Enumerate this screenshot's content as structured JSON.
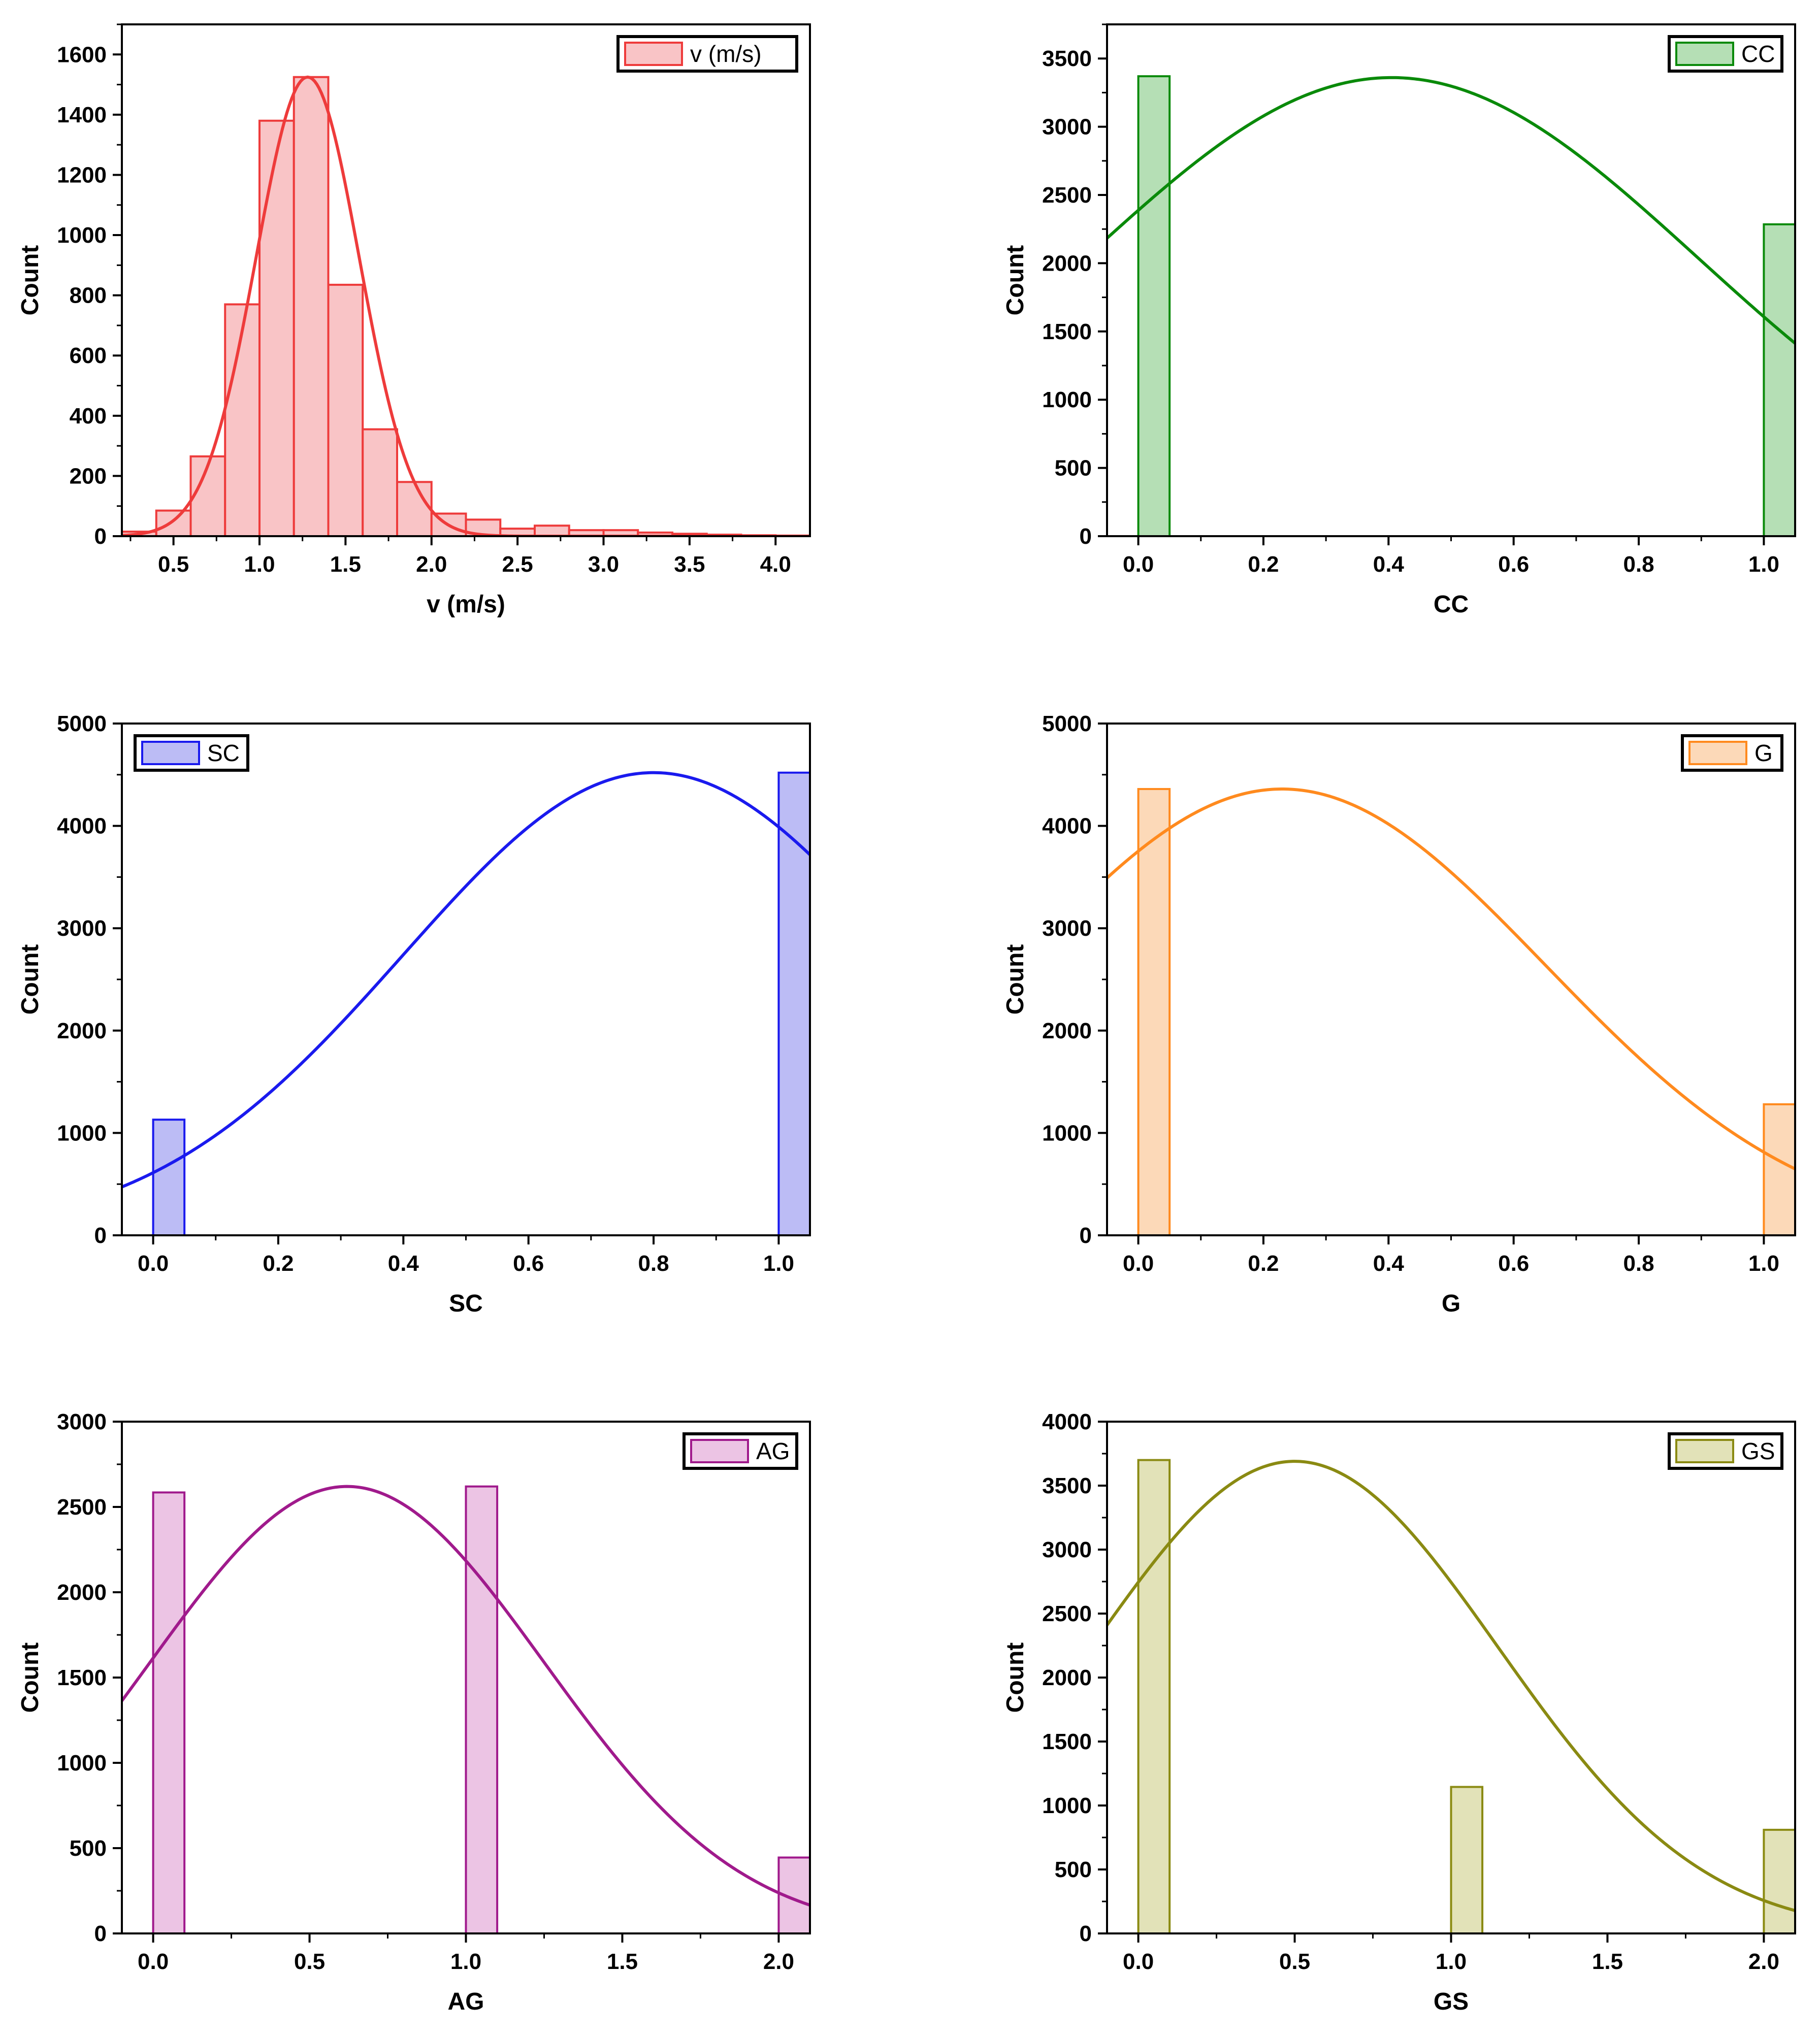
{
  "chart_data": [
    {
      "type": "histogram",
      "xlabel": "v (m/s)",
      "ylabel": "Count",
      "xlim": [
        0.2,
        4.2
      ],
      "ylim": [
        0,
        1700
      ],
      "xticks": [
        0.5,
        1.0,
        1.5,
        2.0,
        2.5,
        3.0,
        3.5,
        4.0
      ],
      "xtick_labels": [
        "0.5",
        "1.0",
        "1.5",
        "2.0",
        "2.5",
        "3.0",
        "3.5",
        "4.0"
      ],
      "yticks": [
        0,
        200,
        400,
        600,
        800,
        1000,
        1200,
        1400,
        1600
      ],
      "ytick_labels": [
        "0",
        "200",
        "400",
        "600",
        "800",
        "1000",
        "1200",
        "1400",
        "1600"
      ],
      "bar_width": 0.2,
      "bars": [
        {
          "x": 0.2,
          "count": 15
        },
        {
          "x": 0.4,
          "count": 85
        },
        {
          "x": 0.6,
          "count": 265
        },
        {
          "x": 0.8,
          "count": 770
        },
        {
          "x": 1.0,
          "count": 1380
        },
        {
          "x": 1.2,
          "count": 1525
        },
        {
          "x": 1.4,
          "count": 835
        },
        {
          "x": 1.6,
          "count": 355
        },
        {
          "x": 1.8,
          "count": 180
        },
        {
          "x": 2.0,
          "count": 75
        },
        {
          "x": 2.2,
          "count": 55
        },
        {
          "x": 2.4,
          "count": 25
        },
        {
          "x": 2.6,
          "count": 35
        },
        {
          "x": 2.8,
          "count": 20
        },
        {
          "x": 3.0,
          "count": 20
        },
        {
          "x": 3.2,
          "count": 12
        },
        {
          "x": 3.4,
          "count": 8
        },
        {
          "x": 3.6,
          "count": 5
        },
        {
          "x": 3.8,
          "count": 3
        },
        {
          "x": 4.0,
          "count": 2
        }
      ],
      "fit": {
        "curve": "normal",
        "peak": 1525,
        "mean": 1.28,
        "sd": 0.3
      },
      "color": "#ee3b3b",
      "fill": "#f9c4c6",
      "legend": {
        "label": "v (m/s)",
        "position": "top-right"
      }
    },
    {
      "type": "histogram",
      "xlabel": "CC",
      "ylabel": "Count",
      "xlim": [
        -0.05,
        1.05
      ],
      "ylim": [
        0,
        3750
      ],
      "xticks": [
        0.0,
        0.2,
        0.4,
        0.6,
        0.8,
        1.0
      ],
      "xtick_labels": [
        "0.0",
        "0.2",
        "0.4",
        "0.6",
        "0.8",
        "1.0"
      ],
      "yticks": [
        0,
        500,
        1000,
        1500,
        2000,
        2500,
        3000,
        3500
      ],
      "ytick_labels": [
        "0",
        "500",
        "1000",
        "1500",
        "2000",
        "2500",
        "3000",
        "3500"
      ],
      "bar_width": 0.05,
      "bars": [
        {
          "x": 0.0,
          "count": 3370
        },
        {
          "x": 1.0,
          "count": 2285
        }
      ],
      "fit": {
        "curve": "normal",
        "peak": 3360,
        "mean": 0.405,
        "sd": 0.49
      },
      "color": "#0a8a0a",
      "fill": "#b5dfb5",
      "legend": {
        "label": "CC",
        "position": "top-right"
      }
    },
    {
      "type": "histogram",
      "xlabel": "SC",
      "ylabel": "Count",
      "xlim": [
        -0.05,
        1.05
      ],
      "ylim": [
        0,
        5000
      ],
      "xticks": [
        0.0,
        0.2,
        0.4,
        0.6,
        0.8,
        1.0
      ],
      "xtick_labels": [
        "0.0",
        "0.2",
        "0.4",
        "0.6",
        "0.8",
        "1.0"
      ],
      "yticks": [
        0,
        1000,
        2000,
        3000,
        4000,
        5000
      ],
      "ytick_labels": [
        "0",
        "1000",
        "2000",
        "3000",
        "4000",
        "5000"
      ],
      "bar_width": 0.05,
      "bars": [
        {
          "x": 0.0,
          "count": 1130
        },
        {
          "x": 1.0,
          "count": 4520
        }
      ],
      "fit": {
        "curve": "normal",
        "peak": 4520,
        "mean": 0.8,
        "sd": 0.4
      },
      "color": "#1a1aee",
      "fill": "#bcbcf5",
      "legend": {
        "label": "SC",
        "position": "top-left"
      }
    },
    {
      "type": "histogram",
      "xlabel": "G",
      "ylabel": "Count",
      "xlim": [
        -0.05,
        1.05
      ],
      "ylim": [
        0,
        5000
      ],
      "xticks": [
        0.0,
        0.2,
        0.4,
        0.6,
        0.8,
        1.0
      ],
      "xtick_labels": [
        "0.0",
        "0.2",
        "0.4",
        "0.6",
        "0.8",
        "1.0"
      ],
      "yticks": [
        0,
        1000,
        2000,
        3000,
        4000,
        5000
      ],
      "ytick_labels": [
        "0",
        "1000",
        "2000",
        "3000",
        "4000",
        "5000"
      ],
      "bar_width": 0.05,
      "bars": [
        {
          "x": 0.0,
          "count": 4360
        },
        {
          "x": 1.0,
          "count": 1280
        }
      ],
      "fit": {
        "curve": "normal",
        "peak": 4360,
        "mean": 0.23,
        "sd": 0.42
      },
      "color": "#ff8a1e",
      "fill": "#fcd9b8",
      "legend": {
        "label": "G",
        "position": "top-right"
      }
    },
    {
      "type": "histogram",
      "xlabel": "AG",
      "ylabel": "Count",
      "xlim": [
        -0.1,
        2.1
      ],
      "ylim": [
        0,
        3000
      ],
      "xticks": [
        0.0,
        0.5,
        1.0,
        1.5,
        2.0
      ],
      "xtick_labels": [
        "0.0",
        "0.5",
        "1.0",
        "1.5",
        "2.0"
      ],
      "yticks": [
        0,
        500,
        1000,
        1500,
        2000,
        2500,
        3000
      ],
      "ytick_labels": [
        "0",
        "500",
        "1000",
        "1500",
        "2000",
        "2500",
        "3000"
      ],
      "bar_width": 0.1,
      "bars": [
        {
          "x": 0.0,
          "count": 2585
        },
        {
          "x": 1.0,
          "count": 2620
        },
        {
          "x": 2.0,
          "count": 445
        }
      ],
      "fit": {
        "curve": "normal",
        "peak": 2620,
        "mean": 0.62,
        "sd": 0.63
      },
      "color": "#a01a8c",
      "fill": "#ecc4e4",
      "legend": {
        "label": "AG",
        "position": "top-right"
      }
    },
    {
      "type": "histogram",
      "xlabel": "GS",
      "ylabel": "Count",
      "xlim": [
        -0.1,
        2.1
      ],
      "ylim": [
        0,
        4000
      ],
      "xticks": [
        0.0,
        0.5,
        1.0,
        1.5,
        2.0
      ],
      "xtick_labels": [
        "0.0",
        "0.5",
        "1.0",
        "1.5",
        "2.0"
      ],
      "yticks": [
        0,
        500,
        1000,
        1500,
        2000,
        2500,
        3000,
        3500,
        4000
      ],
      "ytick_labels": [
        "0",
        "500",
        "1000",
        "1500",
        "2000",
        "2500",
        "3000",
        "3500",
        "4000"
      ],
      "bar_width": 0.1,
      "bars": [
        {
          "x": 0.0,
          "count": 3700
        },
        {
          "x": 1.0,
          "count": 1145
        },
        {
          "x": 2.0,
          "count": 810
        }
      ],
      "fit": {
        "curve": "normal",
        "peak": 3690,
        "mean": 0.5,
        "sd": 0.65
      },
      "color": "#8a8a12",
      "fill": "#e2e2b8",
      "legend": {
        "label": "GS",
        "position": "top-right"
      }
    }
  ]
}
